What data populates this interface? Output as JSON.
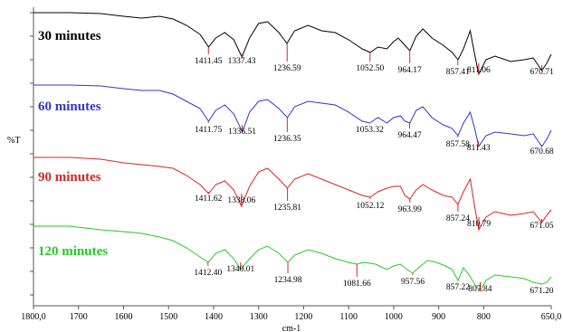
{
  "chart_data": {
    "type": "line",
    "ylabel": "%T",
    "xlabel": "cm-1",
    "xlim": [
      1800,
      650
    ],
    "x_ticks": [
      "1800,0",
      "1700",
      "1600",
      "1500",
      "1400",
      "1300",
      "1200",
      "1100",
      "1000",
      "900",
      "800",
      "650,0"
    ],
    "grid": false,
    "series": [
      {
        "name": "30 minutes",
        "color": "#000000",
        "peaks": [
          "1411.45",
          "1337.43",
          "1236.59",
          "1052.50",
          "964.17",
          "857.41",
          "811.06",
          "670.71"
        ],
        "peak_x": [
          1411.45,
          1337.43,
          1236.59,
          1052.5,
          964.17,
          857.41,
          811.06,
          670.71
        ]
      },
      {
        "name": "60 minutes",
        "color": "#3333cc",
        "peaks": [
          "1411.75",
          "1336.51",
          "1236.35",
          "1053.32",
          "964.47",
          "857.58",
          "811.43",
          "670.68"
        ],
        "peak_x": [
          1411.75,
          1336.51,
          1236.35,
          1053.32,
          964.47,
          857.58,
          811.43,
          670.68
        ]
      },
      {
        "name": "90 minutes",
        "color": "#dd2222",
        "peaks": [
          "1411.62",
          "1338.06",
          "1235.81",
          "1052.12",
          "963.99",
          "857.24",
          "810.79",
          "671.05"
        ],
        "peak_x": [
          1411.62,
          1338.06,
          1235.81,
          1052.12,
          963.99,
          857.24,
          810.79,
          671.05
        ]
      },
      {
        "name": "120 minutes",
        "color": "#22cc22",
        "peaks": [
          "1412.40",
          "1340.01",
          "1234.98",
          "1081.66",
          "957.56",
          "857.22",
          "807.84",
          "671.20"
        ],
        "peak_x": [
          1412.4,
          1340.01,
          1234.98,
          1081.66,
          957.56,
          857.22,
          807.84,
          671.2
        ]
      }
    ]
  }
}
